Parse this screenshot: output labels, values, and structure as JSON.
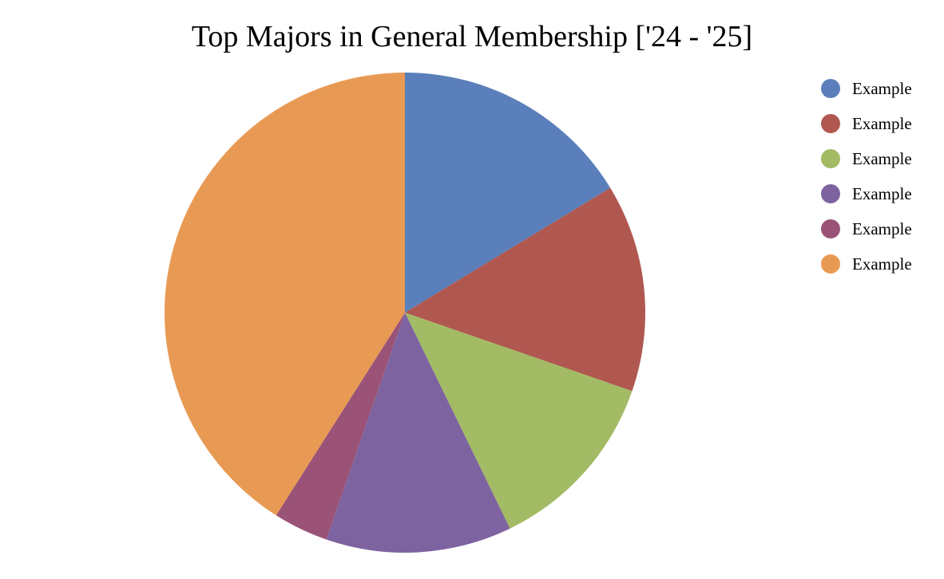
{
  "chart_data": {
    "type": "pie",
    "title": "Top Majors in General Membership ['24 - '25]",
    "legend_position": "top-right",
    "series": [
      {
        "name": "Example",
        "value": 16.3,
        "color": "#5b7fba"
      },
      {
        "name": "Example",
        "value": 14.0,
        "color": "#b05850"
      },
      {
        "name": "Example",
        "value": 12.5,
        "color": "#a2bb64"
      },
      {
        "name": "Example",
        "value": 12.5,
        "color": "#7d64a0"
      },
      {
        "name": "Example",
        "value": 3.7,
        "color": "#9a5376"
      },
      {
        "name": "Example",
        "value": 41.0,
        "color": "#e89a54"
      }
    ]
  }
}
